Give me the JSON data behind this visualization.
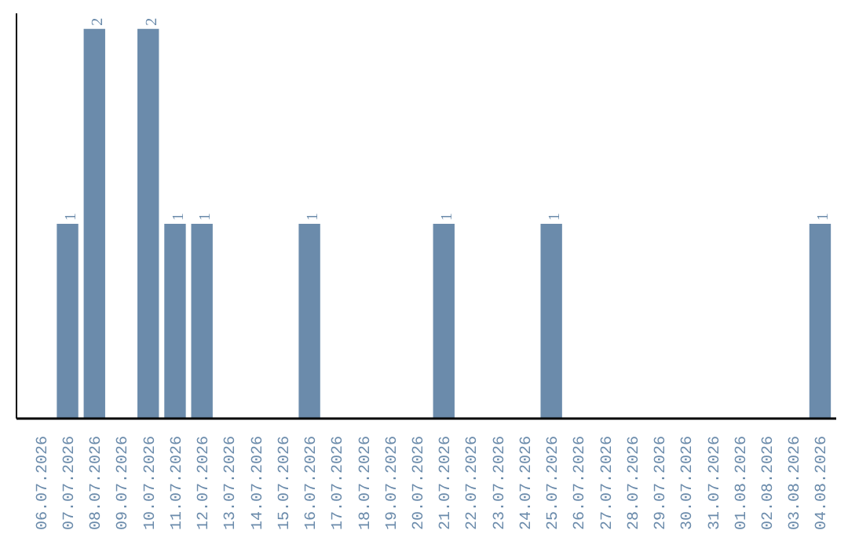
{
  "chart_data": {
    "type": "bar",
    "categories": [
      "06.07.2026",
      "07.07.2026",
      "08.07.2026",
      "09.07.2026",
      "10.07.2026",
      "11.07.2026",
      "12.07.2026",
      "13.07.2026",
      "14.07.2026",
      "15.07.2026",
      "16.07.2026",
      "17.07.2026",
      "18.07.2026",
      "19.07.2026",
      "20.07.2026",
      "21.07.2026",
      "22.07.2026",
      "23.07.2026",
      "24.07.2026",
      "25.07.2026",
      "26.07.2026",
      "27.07.2026",
      "28.07.2026",
      "29.07.2026",
      "30.07.2026",
      "31.07.2026",
      "01.08.2026",
      "02.08.2026",
      "03.08.2026",
      "04.08.2026"
    ],
    "values": [
      0,
      1,
      2,
      0,
      2,
      1,
      1,
      0,
      0,
      0,
      1,
      0,
      0,
      0,
      0,
      1,
      0,
      0,
      0,
      1,
      0,
      0,
      0,
      0,
      0,
      0,
      0,
      0,
      0,
      1
    ],
    "value_labels": [
      null,
      "1",
      "2",
      null,
      "2",
      "1",
      "1",
      null,
      null,
      null,
      "1",
      null,
      null,
      null,
      null,
      "1",
      null,
      null,
      null,
      "1",
      null,
      null,
      null,
      null,
      null,
      null,
      null,
      null,
      null,
      "1"
    ],
    "color": "#6b8bab",
    "tick_labels": "x",
    "grid": false
  }
}
